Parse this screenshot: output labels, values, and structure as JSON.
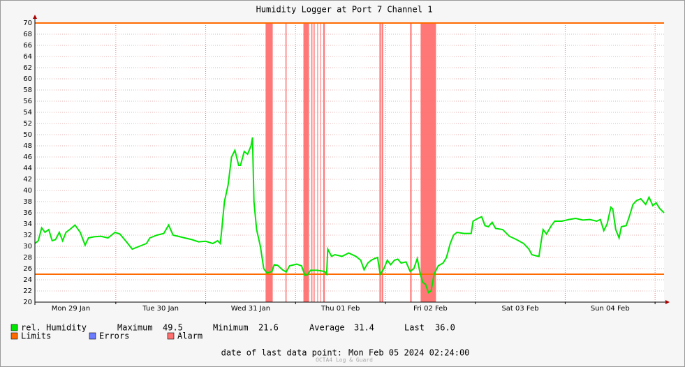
{
  "chart_data": {
    "type": "line",
    "title": "Humidity Logger at Port 7 Channel 1",
    "x": [
      2.4,
      3.3,
      4.2,
      5.1,
      6.1,
      7.0,
      7.9,
      8.9,
      9.8,
      10.7,
      11.7,
      13.1,
      14.5,
      15.8,
      16.7,
      18.2,
      20.0,
      21.9,
      23.8,
      25.1,
      26.6,
      28.4,
      30.3,
      32.2,
      33.1,
      35.0,
      36.8,
      38.1,
      39.3,
      40.6,
      42.4,
      44.3,
      46.1,
      48.0,
      49.9,
      51.2,
      51.9,
      52.3,
      53.0,
      54.0,
      54.9,
      55.8,
      56.8,
      57.3,
      58.3,
      59.2,
      60.1,
      60.5,
      60.9,
      61.6,
      62.6,
      63.5,
      64.4,
      65.7,
      66.3,
      67.2,
      68.5,
      69.5,
      70.4,
      72.3,
      73.6,
      74.5,
      75.2,
      76.0,
      77.8,
      79.7,
      80.3,
      80.6,
      81.6,
      82.5,
      84.4,
      86.2,
      88.1,
      89.4,
      90.3,
      91.3,
      92.2,
      93.1,
      93.9,
      94.6,
      95.6,
      96.5,
      97.4,
      98.4,
      99.3,
      100.2,
      101.5,
      102.6,
      103.6,
      104.5,
      105.3,
      106.0,
      106.7,
      107.5,
      108.2,
      109.0,
      110.1,
      111.4,
      112.3,
      113.3,
      114.2,
      115.1,
      117.0,
      118.9,
      119.4,
      120.7,
      121.7,
      122.6,
      123.5,
      124.5,
      125.4,
      127.3,
      129.1,
      131.0,
      132.9,
      134.3,
      135.1,
      136.2,
      137.0,
      137.5,
      138.1,
      139.0,
      140.3,
      141.2,
      143.1,
      145.0,
      146.8,
      148.7,
      150.6,
      152.4,
      153.4,
      154.3,
      155.2,
      156.2,
      156.7,
      157.5,
      158.4,
      159.0,
      160.3,
      161.2,
      162.1,
      163.1,
      164.2,
      165.5,
      166.4,
      167.4,
      168.3,
      169.2,
      170.4
    ],
    "series": [
      {
        "name": "rel. Humidity",
        "color": "#00e600",
        "values": [
          30.5,
          31,
          33.3,
          32.5,
          33,
          31,
          31.2,
          32.5,
          31,
          32.5,
          33,
          33.8,
          32.5,
          30.2,
          31.5,
          31.7,
          31.8,
          31.5,
          32.5,
          32.2,
          31,
          29.5,
          30,
          30.5,
          31.5,
          32,
          32.3,
          33.8,
          32,
          31.8,
          31.5,
          31.2,
          30.8,
          30.9,
          30.5,
          31,
          30.5,
          33,
          38,
          41,
          46,
          47.2,
          44.5,
          44.5,
          47,
          46.5,
          48,
          49.5,
          38,
          33,
          30,
          26,
          25.2,
          25.5,
          26.7,
          26.6,
          25.8,
          25.4,
          26.5,
          26.8,
          26.5,
          24.8,
          24.9,
          25.7,
          25.7,
          25.5,
          25,
          29.5,
          28.2,
          28.5,
          28.2,
          28.8,
          28.2,
          27.5,
          25.8,
          27,
          27.5,
          27.8,
          28,
          25,
          26,
          27.5,
          26.7,
          27.5,
          27.7,
          27,
          27.2,
          25.5,
          26,
          27.8,
          25,
          23.5,
          23.2,
          21.7,
          22,
          25,
          26.5,
          27,
          28,
          30.5,
          32,
          32.5,
          32.3,
          32.3,
          34.5,
          35,
          35.3,
          33.7,
          33.5,
          34.3,
          33.2,
          33,
          31.8,
          31.2,
          30.5,
          29.5,
          28.5,
          28.3,
          28.2,
          30.5,
          33,
          32.2,
          33.7,
          34.5,
          34.5,
          34.8,
          35,
          34.7,
          34.8,
          34.5,
          34.8,
          32.8,
          34,
          37,
          36.7,
          33,
          31.5,
          33.5,
          33.7,
          35.5,
          37.5,
          38.2,
          38.5,
          37.5,
          38.8,
          37.3,
          37.8,
          36.8,
          36
        ]
      }
    ],
    "limits": {
      "name": "Limits",
      "color": "#ff6a00",
      "values": [
        70,
        25
      ]
    },
    "errors": {
      "name": "Errors",
      "color": "#6b7cff"
    },
    "alarms": {
      "name": "Alarm",
      "color": "#ff7070",
      "spans": [
        [
          64.0,
          65.9
        ],
        [
          69.3,
          69.6
        ],
        [
          74.1,
          75.6
        ],
        [
          76.2,
          76.5
        ],
        [
          76.8,
          77.1
        ],
        [
          77.8,
          78.0
        ],
        [
          78.6,
          78.8
        ],
        [
          79.4,
          79.8
        ],
        [
          94.4,
          94.8
        ],
        [
          95.0,
          95.4
        ],
        [
          102.6,
          103.0
        ],
        [
          105.4,
          109.5
        ]
      ]
    },
    "xlim": [
      2.4,
      170.4
    ],
    "xticks": [
      {
        "value": 12,
        "label": "Mon 29 Jan"
      },
      {
        "value": 36,
        "label": "Tue 30 Jan"
      },
      {
        "value": 60,
        "label": "Wed 31 Jan"
      },
      {
        "value": 84,
        "label": "Thu 01 Feb"
      },
      {
        "value": 108,
        "label": "Fri 02 Feb"
      },
      {
        "value": 132,
        "label": "Sat 03 Feb"
      },
      {
        "value": 156,
        "label": "Sun 04 Feb"
      }
    ],
    "xgrid": [
      24,
      48,
      72,
      96,
      120,
      144,
      168
    ],
    "ylim": [
      20,
      70
    ],
    "yticks": [
      20,
      22,
      24,
      26,
      28,
      30,
      32,
      34,
      36,
      38,
      40,
      42,
      44,
      46,
      48,
      50,
      52,
      54,
      56,
      58,
      60,
      62,
      64,
      66,
      68,
      70
    ],
    "grid": true,
    "stats": [
      {
        "label": "Maximum",
        "value": 49.5
      },
      {
        "label": "Minimum",
        "value": 21.6
      },
      {
        "label": "Average",
        "value": 31.4
      },
      {
        "label": "Last",
        "value": 36,
        "value_label": "36.0"
      }
    ],
    "last_point": {
      "label": "date of last data point:",
      "value": "Mon Feb 05 2024 02:24:00"
    },
    "footer": "OCTA4 Log & Guard"
  }
}
